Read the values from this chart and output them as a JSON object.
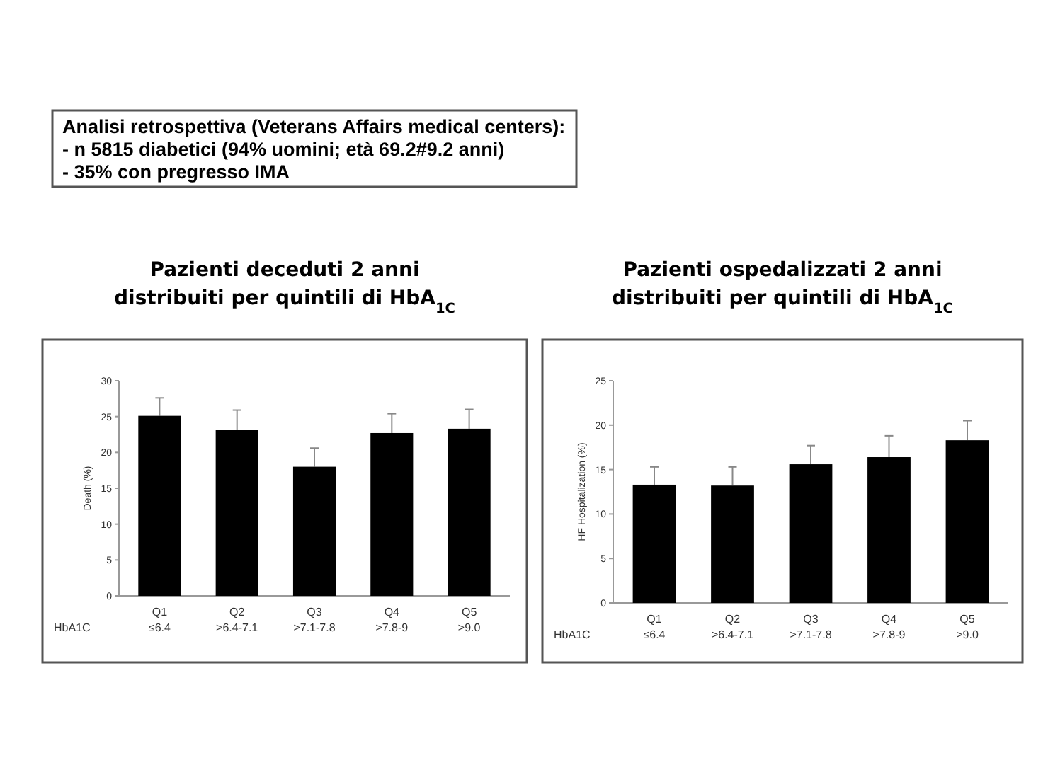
{
  "chart_data": [
    {
      "type": "other",
      "annotations": [
        "Analisi retrospettiva (Veterans Affairs medical centers):",
        "- n 5815 diabetici (94% uomini; età 69.2#9.2 anni)",
        "- 35%  con pregresso IMA"
      ]
    },
    {
      "type": "bar",
      "title": "Pazienti deceduti  2 anni",
      "subtitle": "distribuiti per  quintili di HbA$_{1C}$",
      "ylabel": "Death (%)",
      "xlabel": "HbA1C",
      "categories": [
        "Q1\n≤6.4",
        "Q2\n>6.4-7.1",
        "Q3\n>7.1-7.8",
        "Q4\n>7.8-9",
        "Q5\n>9.0"
      ],
      "values": [
        25.1,
        23.1,
        18.0,
        22.7,
        23.3
      ],
      "errors": [
        [
          25.1,
          27.6
        ],
        [
          23.1,
          25.9
        ],
        [
          18.0,
          20.6
        ],
        [
          22.7,
          25.4
        ],
        [
          23.3,
          26.0
        ]
      ],
      "color": "#000000",
      "ylim": [
        0,
        30
      ],
      "yticks": [
        0,
        5,
        10,
        15,
        20,
        25,
        30
      ],
      "grid": false
    },
    {
      "type": "bar",
      "title": "Pazienti ospedalizzati  2 anni",
      "subtitle": "distribuiti per  quintili di HbA$_{1C}$",
      "ylabel": "HF Hospitalization (%)",
      "xlabel": "HbA1C",
      "categories": [
        "Q1\n≤6.4",
        "Q2\n>6.4-7.1",
        "Q3\n>7.1-7.8",
        "Q4\n>7.8-9",
        "Q5\n>9.0"
      ],
      "values": [
        13.3,
        13.2,
        15.6,
        16.4,
        18.3
      ],
      "errors": [
        [
          13.3,
          15.3
        ],
        [
          13.2,
          15.3
        ],
        [
          15.6,
          17.7
        ],
        [
          16.4,
          18.8
        ],
        [
          18.3,
          20.5
        ]
      ],
      "color": "#000000",
      "ylim": [
        0,
        25
      ],
      "yticks": [
        0,
        5,
        10,
        15,
        20,
        25
      ],
      "grid": false
    }
  ]
}
